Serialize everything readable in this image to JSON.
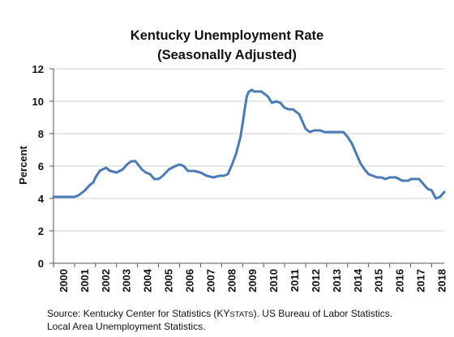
{
  "chart_data": {
    "type": "line",
    "title": "Kentucky Unemployment Rate",
    "subtitle": "(Seasonally Adjusted)",
    "ylabel": "Percent",
    "xlabel": "",
    "ylim": [
      0,
      12
    ],
    "yticks": [
      0,
      2,
      4,
      6,
      8,
      10,
      12
    ],
    "xlim": [
      2000,
      2018.6
    ],
    "xticks": [
      "2000",
      "2001",
      "2002",
      "2003",
      "2004",
      "2005",
      "2006",
      "2007",
      "2008",
      "2009",
      "2010",
      "2011",
      "2012",
      "2013",
      "2014",
      "2015",
      "2016",
      "2017",
      "2018"
    ],
    "grid": "horizontal",
    "legend": "none",
    "color": "#4a7ab8",
    "series": [
      {
        "x": [
          2000.0,
          2000.5,
          2001.0,
          2001.2,
          2001.5,
          2001.7,
          2001.9,
          2002.0,
          2002.2,
          2002.5,
          2002.7,
          2003.0,
          2003.3,
          2003.5,
          2003.7,
          2003.9,
          2004.2,
          2004.4,
          2004.6,
          2004.8,
          2005.0,
          2005.2,
          2005.5,
          2005.8,
          2006.0,
          2006.2,
          2006.4,
          2006.7,
          2007.0,
          2007.3,
          2007.6,
          2007.9,
          2008.1,
          2008.3,
          2008.5,
          2008.7,
          2008.9,
          2009.0,
          2009.1,
          2009.2,
          2009.3,
          2009.45,
          2009.55,
          2009.7,
          2009.9,
          2010.2,
          2010.4,
          2010.6,
          2010.8,
          2011.0,
          2011.2,
          2011.4,
          2011.7,
          2011.9,
          2012.0,
          2012.2,
          2012.4,
          2012.7,
          2012.9,
          2013.2,
          2013.5,
          2013.8,
          2014.0,
          2014.2,
          2014.4,
          2014.6,
          2014.8,
          2015.0,
          2015.2,
          2015.4,
          2015.6,
          2015.8,
          2016.0,
          2016.3,
          2016.6,
          2016.9,
          2017.0,
          2017.2,
          2017.4,
          2017.6,
          2017.8,
          2018.0,
          2018.2,
          2018.4,
          2018.6
        ],
        "y": [
          4.1,
          4.1,
          4.1,
          4.2,
          4.5,
          4.8,
          5.0,
          5.3,
          5.7,
          5.9,
          5.7,
          5.6,
          5.8,
          6.1,
          6.3,
          6.3,
          5.8,
          5.6,
          5.5,
          5.2,
          5.2,
          5.4,
          5.8,
          6.0,
          6.1,
          6.0,
          5.7,
          5.7,
          5.6,
          5.4,
          5.3,
          5.4,
          5.4,
          5.5,
          6.1,
          6.8,
          7.8,
          8.6,
          9.5,
          10.3,
          10.6,
          10.7,
          10.6,
          10.6,
          10.6,
          10.3,
          9.9,
          10.0,
          9.9,
          9.6,
          9.5,
          9.5,
          9.2,
          8.6,
          8.3,
          8.1,
          8.2,
          8.2,
          8.1,
          8.1,
          8.1,
          8.1,
          7.8,
          7.4,
          6.8,
          6.2,
          5.8,
          5.5,
          5.4,
          5.3,
          5.3,
          5.2,
          5.3,
          5.3,
          5.1,
          5.1,
          5.2,
          5.2,
          5.2,
          4.9,
          4.6,
          4.5,
          4.0,
          4.1,
          4.4
        ]
      }
    ],
    "source_line1": "Source: Kentucky Center for Statistics (KY",
    "source_smallcaps": "STATS",
    "source_line1_end": "). US Bureau of Labor Statistics.",
    "source_line2": "Local Area Unemployment Statistics."
  }
}
